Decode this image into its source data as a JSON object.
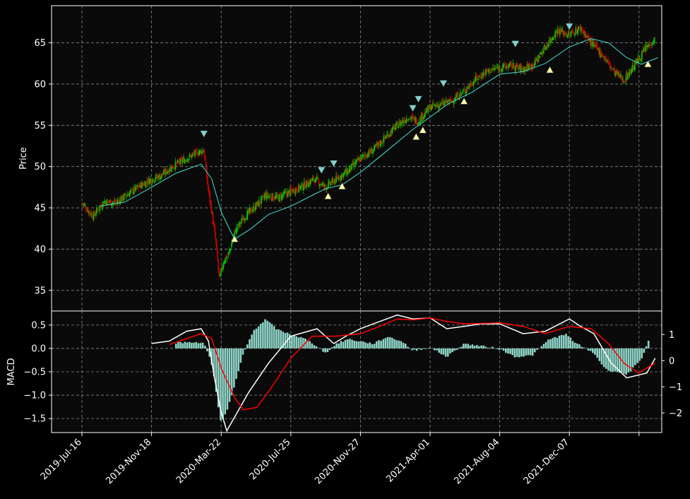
{
  "chart_data": {
    "type": "candlestick",
    "x_labels": [
      "2019-Jul-16",
      "2019-Nov-18",
      "2020-Mar-22",
      "2020-Jul-25",
      "2020-Nov-27",
      "2021-Apr-01",
      "2021-Aug-04",
      "2021-Dec-07"
    ],
    "x_range": [
      "2019-Jun-15",
      "2022-Jun-01"
    ],
    "grid": true,
    "colors": {
      "background": "#0a0a0a",
      "frame": "#ffffff",
      "grid": "#888888",
      "up": "#00c800",
      "down": "#c80000",
      "ma": "#40e0d0",
      "macd_line": "#ffffff",
      "signal_line": "#ff0000",
      "histogram": "#8fd3c7",
      "sell_marker": "#7fd0cc",
      "buy_marker": "#ffffa8"
    },
    "price_panel": {
      "ylabel": "Price",
      "ylim": [
        32.5,
        69.5
      ],
      "yticks": [
        35,
        40,
        45,
        50,
        55,
        60,
        65
      ],
      "ohlc_close_path": [
        [
          "2019-07-16",
          45.6
        ],
        [
          "2019-08-05",
          44.0
        ],
        [
          "2019-08-25",
          45.8
        ],
        [
          "2019-09-15",
          45.6
        ],
        [
          "2019-10-05",
          46.6
        ],
        [
          "2019-10-25",
          47.5
        ],
        [
          "2019-11-15",
          48.4
        ],
        [
          "2019-12-05",
          48.9
        ],
        [
          "2019-12-25",
          50.0
        ],
        [
          "2020-01-15",
          50.8
        ],
        [
          "2020-02-05",
          51.6
        ],
        [
          "2020-02-20",
          52.0
        ],
        [
          "2020-02-27",
          47.5
        ],
        [
          "2020-03-05",
          44.5
        ],
        [
          "2020-03-12",
          41.0
        ],
        [
          "2020-03-19",
          36.2
        ],
        [
          "2020-03-26",
          38.5
        ],
        [
          "2020-04-05",
          39.5
        ],
        [
          "2020-04-15",
          42.0
        ],
        [
          "2020-05-01",
          43.8
        ],
        [
          "2020-05-20",
          45.0
        ],
        [
          "2020-06-10",
          46.5
        ],
        [
          "2020-07-01",
          46.2
        ],
        [
          "2020-07-25",
          47.0
        ],
        [
          "2020-08-15",
          47.6
        ],
        [
          "2020-09-05",
          48.5
        ],
        [
          "2020-09-25",
          47.5
        ],
        [
          "2020-10-15",
          48.5
        ],
        [
          "2020-11-05",
          49.5
        ],
        [
          "2020-11-27",
          51.0
        ],
        [
          "2020-12-20",
          52.0
        ],
        [
          "2021-01-10",
          53.5
        ],
        [
          "2021-02-01",
          55.0
        ],
        [
          "2021-02-20",
          56.0
        ],
        [
          "2021-03-10",
          55.5
        ],
        [
          "2021-04-01",
          57.2
        ],
        [
          "2021-04-20",
          57.5
        ],
        [
          "2021-05-10",
          58.0
        ],
        [
          "2021-05-30",
          59.0
        ],
        [
          "2021-06-20",
          60.5
        ],
        [
          "2021-07-10",
          61.5
        ],
        [
          "2021-08-04",
          62.0
        ],
        [
          "2021-08-25",
          62.2
        ],
        [
          "2021-09-15",
          61.8
        ],
        [
          "2021-10-05",
          62.5
        ],
        [
          "2021-10-25",
          64.5
        ],
        [
          "2021-11-15",
          66.5
        ],
        [
          "2021-12-07",
          66.0
        ],
        [
          "2021-12-27",
          66.8
        ],
        [
          "2022-01-15",
          65.0
        ],
        [
          "2022-02-05",
          63.5
        ],
        [
          "2022-02-25",
          61.5
        ],
        [
          "2022-03-15",
          60.5
        ],
        [
          "2022-04-05",
          62.5
        ],
        [
          "2022-04-25",
          64.5
        ],
        [
          "2022-05-10",
          65.5
        ]
      ],
      "moving_average": [
        [
          "2019-08-15",
          45.2
        ],
        [
          "2019-10-01",
          45.7
        ],
        [
          "2019-11-18",
          47.5
        ],
        [
          "2020-01-01",
          49.2
        ],
        [
          "2020-02-15",
          50.3
        ],
        [
          "2020-03-05",
          48.5
        ],
        [
          "2020-03-22",
          44.5
        ],
        [
          "2020-04-15",
          41.2
        ],
        [
          "2020-05-15",
          42.5
        ],
        [
          "2020-06-15",
          44.2
        ],
        [
          "2020-07-25",
          45.2
        ],
        [
          "2020-09-01",
          46.5
        ],
        [
          "2020-09-25",
          47.3
        ],
        [
          "2020-10-25",
          47.8
        ],
        [
          "2020-11-27",
          49.3
        ],
        [
          "2021-01-15",
          52.0
        ],
        [
          "2021-03-01",
          54.5
        ],
        [
          "2021-04-01",
          56.0
        ],
        [
          "2021-05-01",
          57.5
        ],
        [
          "2021-06-15",
          59.0
        ],
        [
          "2021-08-04",
          61.2
        ],
        [
          "2021-09-15",
          61.5
        ],
        [
          "2021-10-25",
          62.5
        ],
        [
          "2021-12-07",
          64.5
        ],
        [
          "2022-01-15",
          65.5
        ],
        [
          "2022-02-15",
          65.0
        ],
        [
          "2022-03-20",
          63.2
        ],
        [
          "2022-04-15",
          62.4
        ],
        [
          "2022-05-15",
          63.2
        ]
      ],
      "sell_markers": [
        [
          "2020-02-20",
          54.0
        ],
        [
          "2020-09-18",
          49.6
        ],
        [
          "2020-10-10",
          50.4
        ],
        [
          "2021-03-01",
          57.1
        ],
        [
          "2021-03-11",
          58.2
        ],
        [
          "2021-04-25",
          60.1
        ],
        [
          "2021-09-01",
          64.9
        ],
        [
          "2021-12-07",
          67.0
        ]
      ],
      "buy_markers": [
        [
          "2020-04-15",
          41.2
        ],
        [
          "2020-09-30",
          46.4
        ],
        [
          "2020-10-25",
          47.6
        ],
        [
          "2021-03-07",
          53.6
        ],
        [
          "2021-03-19",
          54.4
        ],
        [
          "2021-06-01",
          57.9
        ],
        [
          "2021-11-02",
          61.7
        ],
        [
          "2022-04-27",
          62.4
        ]
      ]
    },
    "macd_panel": {
      "ylabel": "MACD",
      "ylim": [
        -1.8,
        0.8
      ],
      "yticks": [
        0.5,
        0.0,
        -0.5,
        -1.0,
        -1.5
      ],
      "ytick_labels": [
        "0.5",
        "0.0",
        "−0.5",
        "−1.0",
        "−1.5"
      ],
      "y2lim": [
        -2.75,
        1.9
      ],
      "y2ticks": [
        1,
        0,
        -1,
        -2
      ],
      "y2tick_labels": [
        "1",
        "0",
        "−1",
        "−2"
      ],
      "histogram": [
        [
          "2020-01-01",
          0.12
        ],
        [
          "2020-02-01",
          0.14
        ],
        [
          "2020-02-20",
          0.1
        ],
        [
          "2020-02-28",
          -0.1
        ],
        [
          "2020-03-08",
          -0.5
        ],
        [
          "2020-03-15",
          -1.1
        ],
        [
          "2020-03-22",
          -1.6
        ],
        [
          "2020-04-01",
          -1.35
        ],
        [
          "2020-04-15",
          -0.8
        ],
        [
          "2020-05-01",
          -0.1
        ],
        [
          "2020-05-20",
          0.4
        ],
        [
          "2020-06-10",
          0.62
        ],
        [
          "2020-07-01",
          0.4
        ],
        [
          "2020-07-25",
          0.3
        ],
        [
          "2020-08-20",
          0.2
        ],
        [
          "2020-09-10",
          0.05
        ],
        [
          "2020-09-25",
          -0.1
        ],
        [
          "2020-10-15",
          0.1
        ],
        [
          "2020-11-05",
          0.2
        ],
        [
          "2020-11-27",
          0.15
        ],
        [
          "2020-12-20",
          0.1
        ],
        [
          "2021-01-15",
          0.25
        ],
        [
          "2021-02-10",
          0.15
        ],
        [
          "2021-03-01",
          -0.05
        ],
        [
          "2021-04-01",
          0.02
        ],
        [
          "2021-05-01",
          -0.18
        ],
        [
          "2021-06-01",
          0.1
        ],
        [
          "2021-07-01",
          0.05
        ],
        [
          "2021-08-01",
          0.0
        ],
        [
          "2021-09-01",
          -0.18
        ],
        [
          "2021-10-01",
          -0.15
        ],
        [
          "2021-11-01",
          0.2
        ],
        [
          "2021-12-01",
          0.3
        ],
        [
          "2021-12-20",
          0.1
        ],
        [
          "2022-01-20",
          -0.1
        ],
        [
          "2022-02-10",
          -0.45
        ],
        [
          "2022-03-01",
          -0.5
        ],
        [
          "2022-03-20",
          -0.55
        ],
        [
          "2022-04-15",
          -0.25
        ],
        [
          "2022-05-01",
          0.25
        ]
      ],
      "macd_line": [
        [
          "2019-11-18",
          0.1
        ],
        [
          "2019-12-20",
          0.15
        ],
        [
          "2020-01-20",
          0.35
        ],
        [
          "2020-02-15",
          0.4
        ],
        [
          "2020-02-28",
          0.15
        ],
        [
          "2020-03-10",
          -0.6
        ],
        [
          "2020-03-22",
          -1.3
        ],
        [
          "2020-04-01",
          -1.68
        ],
        [
          "2020-04-15",
          -1.4
        ],
        [
          "2020-05-10",
          -0.9
        ],
        [
          "2020-06-15",
          -0.3
        ],
        [
          "2020-07-25",
          0.25
        ],
        [
          "2020-09-10",
          0.4
        ],
        [
          "2020-10-10",
          0.1
        ],
        [
          "2020-11-01",
          0.25
        ],
        [
          "2020-11-27",
          0.4
        ],
        [
          "2021-01-01",
          0.55
        ],
        [
          "2021-02-01",
          0.68
        ],
        [
          "2021-03-01",
          0.6
        ],
        [
          "2021-04-01",
          0.62
        ],
        [
          "2021-05-01",
          0.4
        ],
        [
          "2021-06-01",
          0.45
        ],
        [
          "2021-07-01",
          0.5
        ],
        [
          "2021-08-04",
          0.5
        ],
        [
          "2021-09-15",
          0.3
        ],
        [
          "2021-10-25",
          0.35
        ],
        [
          "2021-12-07",
          0.6
        ],
        [
          "2021-12-27",
          0.45
        ],
        [
          "2022-01-20",
          0.3
        ],
        [
          "2022-02-20",
          -0.3
        ],
        [
          "2022-03-20",
          -0.6
        ],
        [
          "2022-04-25",
          -0.5
        ],
        [
          "2022-05-10",
          -0.2
        ]
      ],
      "signal_line": [
        [
          "2019-12-20",
          0.08
        ],
        [
          "2020-01-20",
          0.2
        ],
        [
          "2020-02-15",
          0.3
        ],
        [
          "2020-03-05",
          0.2
        ],
        [
          "2020-03-22",
          -0.4
        ],
        [
          "2020-04-15",
          -1.0
        ],
        [
          "2020-05-01",
          -1.25
        ],
        [
          "2020-05-25",
          -1.2
        ],
        [
          "2020-06-20",
          -0.8
        ],
        [
          "2020-07-25",
          -0.2
        ],
        [
          "2020-09-01",
          0.25
        ],
        [
          "2020-10-15",
          0.25
        ],
        [
          "2020-11-27",
          0.3
        ],
        [
          "2021-01-01",
          0.45
        ],
        [
          "2021-02-01",
          0.6
        ],
        [
          "2021-03-01",
          0.58
        ],
        [
          "2021-04-01",
          0.62
        ],
        [
          "2021-05-01",
          0.55
        ],
        [
          "2021-06-01",
          0.5
        ],
        [
          "2021-08-04",
          0.52
        ],
        [
          "2021-09-15",
          0.45
        ],
        [
          "2021-10-25",
          0.3
        ],
        [
          "2021-12-07",
          0.45
        ],
        [
          "2022-01-15",
          0.4
        ],
        [
          "2022-02-15",
          0.1
        ],
        [
          "2022-03-15",
          -0.3
        ],
        [
          "2022-04-10",
          -0.5
        ],
        [
          "2022-05-10",
          -0.3
        ]
      ]
    }
  }
}
